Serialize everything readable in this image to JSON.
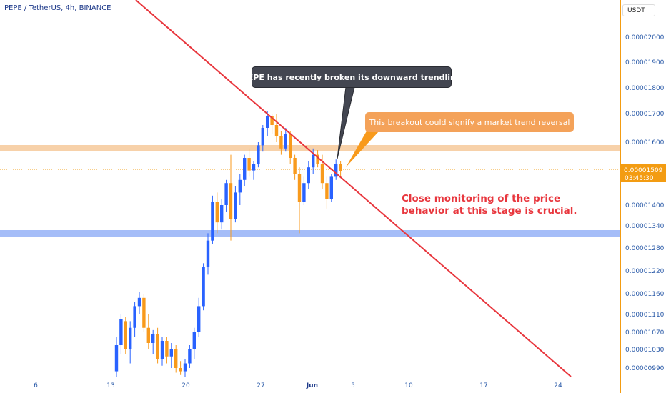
{
  "header": {
    "symbol": "PEPE / TetherUS, 4h, BINANCE",
    "currency_button": "USDT"
  },
  "price_tag": {
    "price": "0.00001509",
    "countdown": "03:45:30"
  },
  "annotations": {
    "trendline_callout": "PEPE has recently broken its downward trendline",
    "reversal_callout": "This breakout could signify a market trend reversal",
    "monitoring_note_line1": "Close monitoring of the price",
    "monitoring_note_line2": "behavior at this stage is crucial."
  },
  "colors": {
    "bull": "#2962ff",
    "bear": "#f89a1c",
    "trendline": "#e8363d",
    "resistance_zone": "#f6c99a",
    "support_zone": "#9bb6f7",
    "current_price": "#f39c12",
    "axis_border": "#f39c12",
    "axis_text": "#2a5aa8"
  },
  "chart_data": {
    "type": "candlestick",
    "timeframe": "4h",
    "y_ticks": [
      "0.00002000",
      "0.00001900",
      "0.00001800",
      "0.00001700",
      "0.00001600",
      "0.00001400",
      "0.00001340",
      "0.00001280",
      "0.00001220",
      "0.00001160",
      "0.00001110",
      "0.00001070",
      "0.00001030",
      "0.00000990"
    ],
    "x_ticks": [
      "6",
      "13",
      "20",
      "27",
      "Jun",
      "5",
      "10",
      "17",
      "24"
    ],
    "levels": {
      "resistance": 1.57e-05,
      "support": 1.32e-05,
      "current_price": 1.509e-05
    },
    "trendline": {
      "start": {
        "x": "Jun 2",
        "y": 2.09e-05
      },
      "end": {
        "x": "Jun 26",
        "y": 9.7e-06
      }
    },
    "candles": [
      {
        "o": 9.83e-06,
        "h": 1.06e-05,
        "l": 9.7e-06,
        "c": 1.04e-05
      },
      {
        "o": 1.04e-05,
        "h": 1.11e-05,
        "l": 1.02e-05,
        "c": 1.1e-05
      },
      {
        "o": 1.095e-05,
        "h": 1.105e-05,
        "l": 1.02e-05,
        "c": 1.03e-05
      },
      {
        "o": 1.03e-05,
        "h": 1.095e-05,
        "l": 1e-05,
        "c": 1.08e-05
      },
      {
        "o": 1.08e-05,
        "h": 1.14e-05,
        "l": 1.06e-05,
        "c": 1.13e-05
      },
      {
        "o": 1.13e-05,
        "h": 1.165e-05,
        "l": 1.11e-05,
        "c": 1.15e-05
      },
      {
        "o": 1.15e-05,
        "h": 1.16e-05,
        "l": 1.07e-05,
        "c": 1.08e-05
      },
      {
        "o": 1.08e-05,
        "h": 1.11e-05,
        "l": 1.03e-05,
        "c": 1.045e-05
      },
      {
        "o": 1.045e-05,
        "h": 1.075e-05,
        "l": 1.02e-05,
        "c": 1.065e-05
      },
      {
        "o": 1.065e-05,
        "h": 1.08e-05,
        "l": 1e-05,
        "c": 1.01e-05
      },
      {
        "o": 1.01e-05,
        "h": 1.06e-05,
        "l": 9.95e-06,
        "c": 1.05e-05
      },
      {
        "o": 1.05e-05,
        "h": 1.06e-05,
        "l": 1e-05,
        "c": 1.015e-05
      },
      {
        "o": 1.015e-05,
        "h": 1.045e-05,
        "l": 9.9e-06,
        "c": 1.03e-05
      },
      {
        "o": 1.03e-05,
        "h": 1.04e-05,
        "l": 9.8e-06,
        "c": 9.9e-06
      },
      {
        "o": 9.9e-06,
        "h": 1.005e-05,
        "l": 9.75e-06,
        "c": 9.83e-06
      },
      {
        "o": 9.83e-06,
        "h": 1.01e-05,
        "l": 9.7e-06,
        "c": 1e-05
      },
      {
        "o": 1e-05,
        "h": 1.04e-05,
        "l": 9.9e-06,
        "c": 1.03e-05
      },
      {
        "o": 1.03e-05,
        "h": 1.08e-05,
        "l": 1.01e-05,
        "c": 1.07e-05
      },
      {
        "o": 1.07e-05,
        "h": 1.15e-05,
        "l": 1.06e-05,
        "c": 1.13e-05
      },
      {
        "o": 1.13e-05,
        "h": 1.24e-05,
        "l": 1.12e-05,
        "c": 1.23e-05
      },
      {
        "o": 1.23e-05,
        "h": 1.32e-05,
        "l": 1.21e-05,
        "c": 1.3e-05
      },
      {
        "o": 1.3e-05,
        "h": 1.43e-05,
        "l": 1.29e-05,
        "c": 1.41e-05
      },
      {
        "o": 1.41e-05,
        "h": 1.44e-05,
        "l": 1.32e-05,
        "c": 1.35e-05
      },
      {
        "o": 1.35e-05,
        "h": 1.42e-05,
        "l": 1.33e-05,
        "c": 1.4e-05
      },
      {
        "o": 1.4e-05,
        "h": 1.48e-05,
        "l": 1.38e-05,
        "c": 1.47e-05
      },
      {
        "o": 1.47e-05,
        "h": 1.56e-05,
        "l": 1.3e-05,
        "c": 1.36e-05
      },
      {
        "o": 1.36e-05,
        "h": 1.46e-05,
        "l": 1.35e-05,
        "c": 1.44e-05
      },
      {
        "o": 1.44e-05,
        "h": 1.5e-05,
        "l": 1.4e-05,
        "c": 1.48e-05
      },
      {
        "o": 1.48e-05,
        "h": 1.56e-05,
        "l": 1.46e-05,
        "c": 1.55e-05
      },
      {
        "o": 1.55e-05,
        "h": 1.58e-05,
        "l": 1.49e-05,
        "c": 1.51e-05
      },
      {
        "o": 1.51e-05,
        "h": 1.54e-05,
        "l": 1.48e-05,
        "c": 1.53e-05
      },
      {
        "o": 1.53e-05,
        "h": 1.6e-05,
        "l": 1.52e-05,
        "c": 1.59e-05
      },
      {
        "o": 1.59e-05,
        "h": 1.66e-05,
        "l": 1.57e-05,
        "c": 1.65e-05
      },
      {
        "o": 1.65e-05,
        "h": 1.71e-05,
        "l": 1.62e-05,
        "c": 1.69e-05
      },
      {
        "o": 1.69e-05,
        "h": 1.7e-05,
        "l": 1.63e-05,
        "c": 1.66e-05
      },
      {
        "o": 1.66e-05,
        "h": 1.7e-05,
        "l": 1.6e-05,
        "c": 1.62e-05
      },
      {
        "o": 1.62e-05,
        "h": 1.64e-05,
        "l": 1.56e-05,
        "c": 1.58e-05
      },
      {
        "o": 1.58e-05,
        "h": 1.65e-05,
        "l": 1.57e-05,
        "c": 1.63e-05
      },
      {
        "o": 1.63e-05,
        "h": 1.64e-05,
        "l": 1.53e-05,
        "c": 1.55e-05
      },
      {
        "o": 1.55e-05,
        "h": 1.56e-05,
        "l": 1.48e-05,
        "c": 1.5e-05
      },
      {
        "o": 1.5e-05,
        "h": 1.52e-05,
        "l": 1.32e-05,
        "c": 1.41e-05
      },
      {
        "o": 1.41e-05,
        "h": 1.49e-05,
        "l": 1.4e-05,
        "c": 1.47e-05
      },
      {
        "o": 1.47e-05,
        "h": 1.54e-05,
        "l": 1.45e-05,
        "c": 1.52e-05
      },
      {
        "o": 1.52e-05,
        "h": 1.58e-05,
        "l": 1.5e-05,
        "c": 1.56e-05
      },
      {
        "o": 1.56e-05,
        "h": 1.575e-05,
        "l": 1.52e-05,
        "c": 1.53e-05
      },
      {
        "o": 1.53e-05,
        "h": 1.56e-05,
        "l": 1.45e-05,
        "c": 1.47e-05
      },
      {
        "o": 1.47e-05,
        "h": 1.49e-05,
        "l": 1.39e-05,
        "c": 1.42e-05
      },
      {
        "o": 1.42e-05,
        "h": 1.5e-05,
        "l": 1.41e-05,
        "c": 1.49e-05
      },
      {
        "o": 1.49e-05,
        "h": 1.545e-05,
        "l": 1.48e-05,
        "c": 1.53e-05
      },
      {
        "o": 1.53e-05,
        "h": 1.54e-05,
        "l": 1.49e-05,
        "c": 1.509e-05
      }
    ]
  }
}
